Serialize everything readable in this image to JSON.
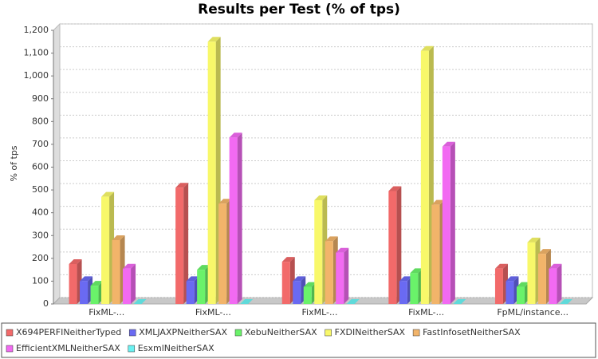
{
  "chart_data": {
    "type": "bar3d",
    "title": "Results per Test (% of tps)",
    "ylabel": "% of tps",
    "categories": [
      "FixML-...",
      "FixML-...",
      "FixML-...",
      "FixML-...",
      "FpML/instance..."
    ],
    "series": [
      {
        "name": "X694PERFINeitherTyped",
        "color": "#f26a6a",
        "values": [
          175,
          510,
          185,
          495,
          155
        ]
      },
      {
        "name": "XMLJAXPNeitherSAX",
        "color": "#6a6af2",
        "values": [
          100,
          100,
          100,
          100,
          100
        ]
      },
      {
        "name": "XebuNeitherSAX",
        "color": "#6af26a",
        "values": [
          80,
          150,
          75,
          135,
          75
        ]
      },
      {
        "name": "FXDINeitherSAX",
        "color": "#f8f86a",
        "values": [
          470,
          1150,
          455,
          1110,
          270
        ]
      },
      {
        "name": "FastInfosetNeitherSAX",
        "color": "#f2b46a",
        "values": [
          280,
          440,
          275,
          435,
          220
        ]
      },
      {
        "name": "EfficientXMLNeitherSAX",
        "color": "#f26af2",
        "values": [
          155,
          730,
          225,
          690,
          155
        ]
      },
      {
        "name": "EsxmlNeitherSAX",
        "color": "#6af2f2",
        "values": [
          0,
          0,
          0,
          0,
          0
        ]
      }
    ],
    "ylim": [
      0,
      1200
    ],
    "yticks": [
      0,
      100,
      200,
      300,
      400,
      500,
      600,
      700,
      800,
      900,
      {
        "value": 1000,
        "label": "1,000"
      },
      {
        "value": 1100,
        "label": "1,100"
      },
      {
        "value": 1200,
        "label": "1,200"
      }
    ],
    "grid": true,
    "legend": "bottom"
  }
}
